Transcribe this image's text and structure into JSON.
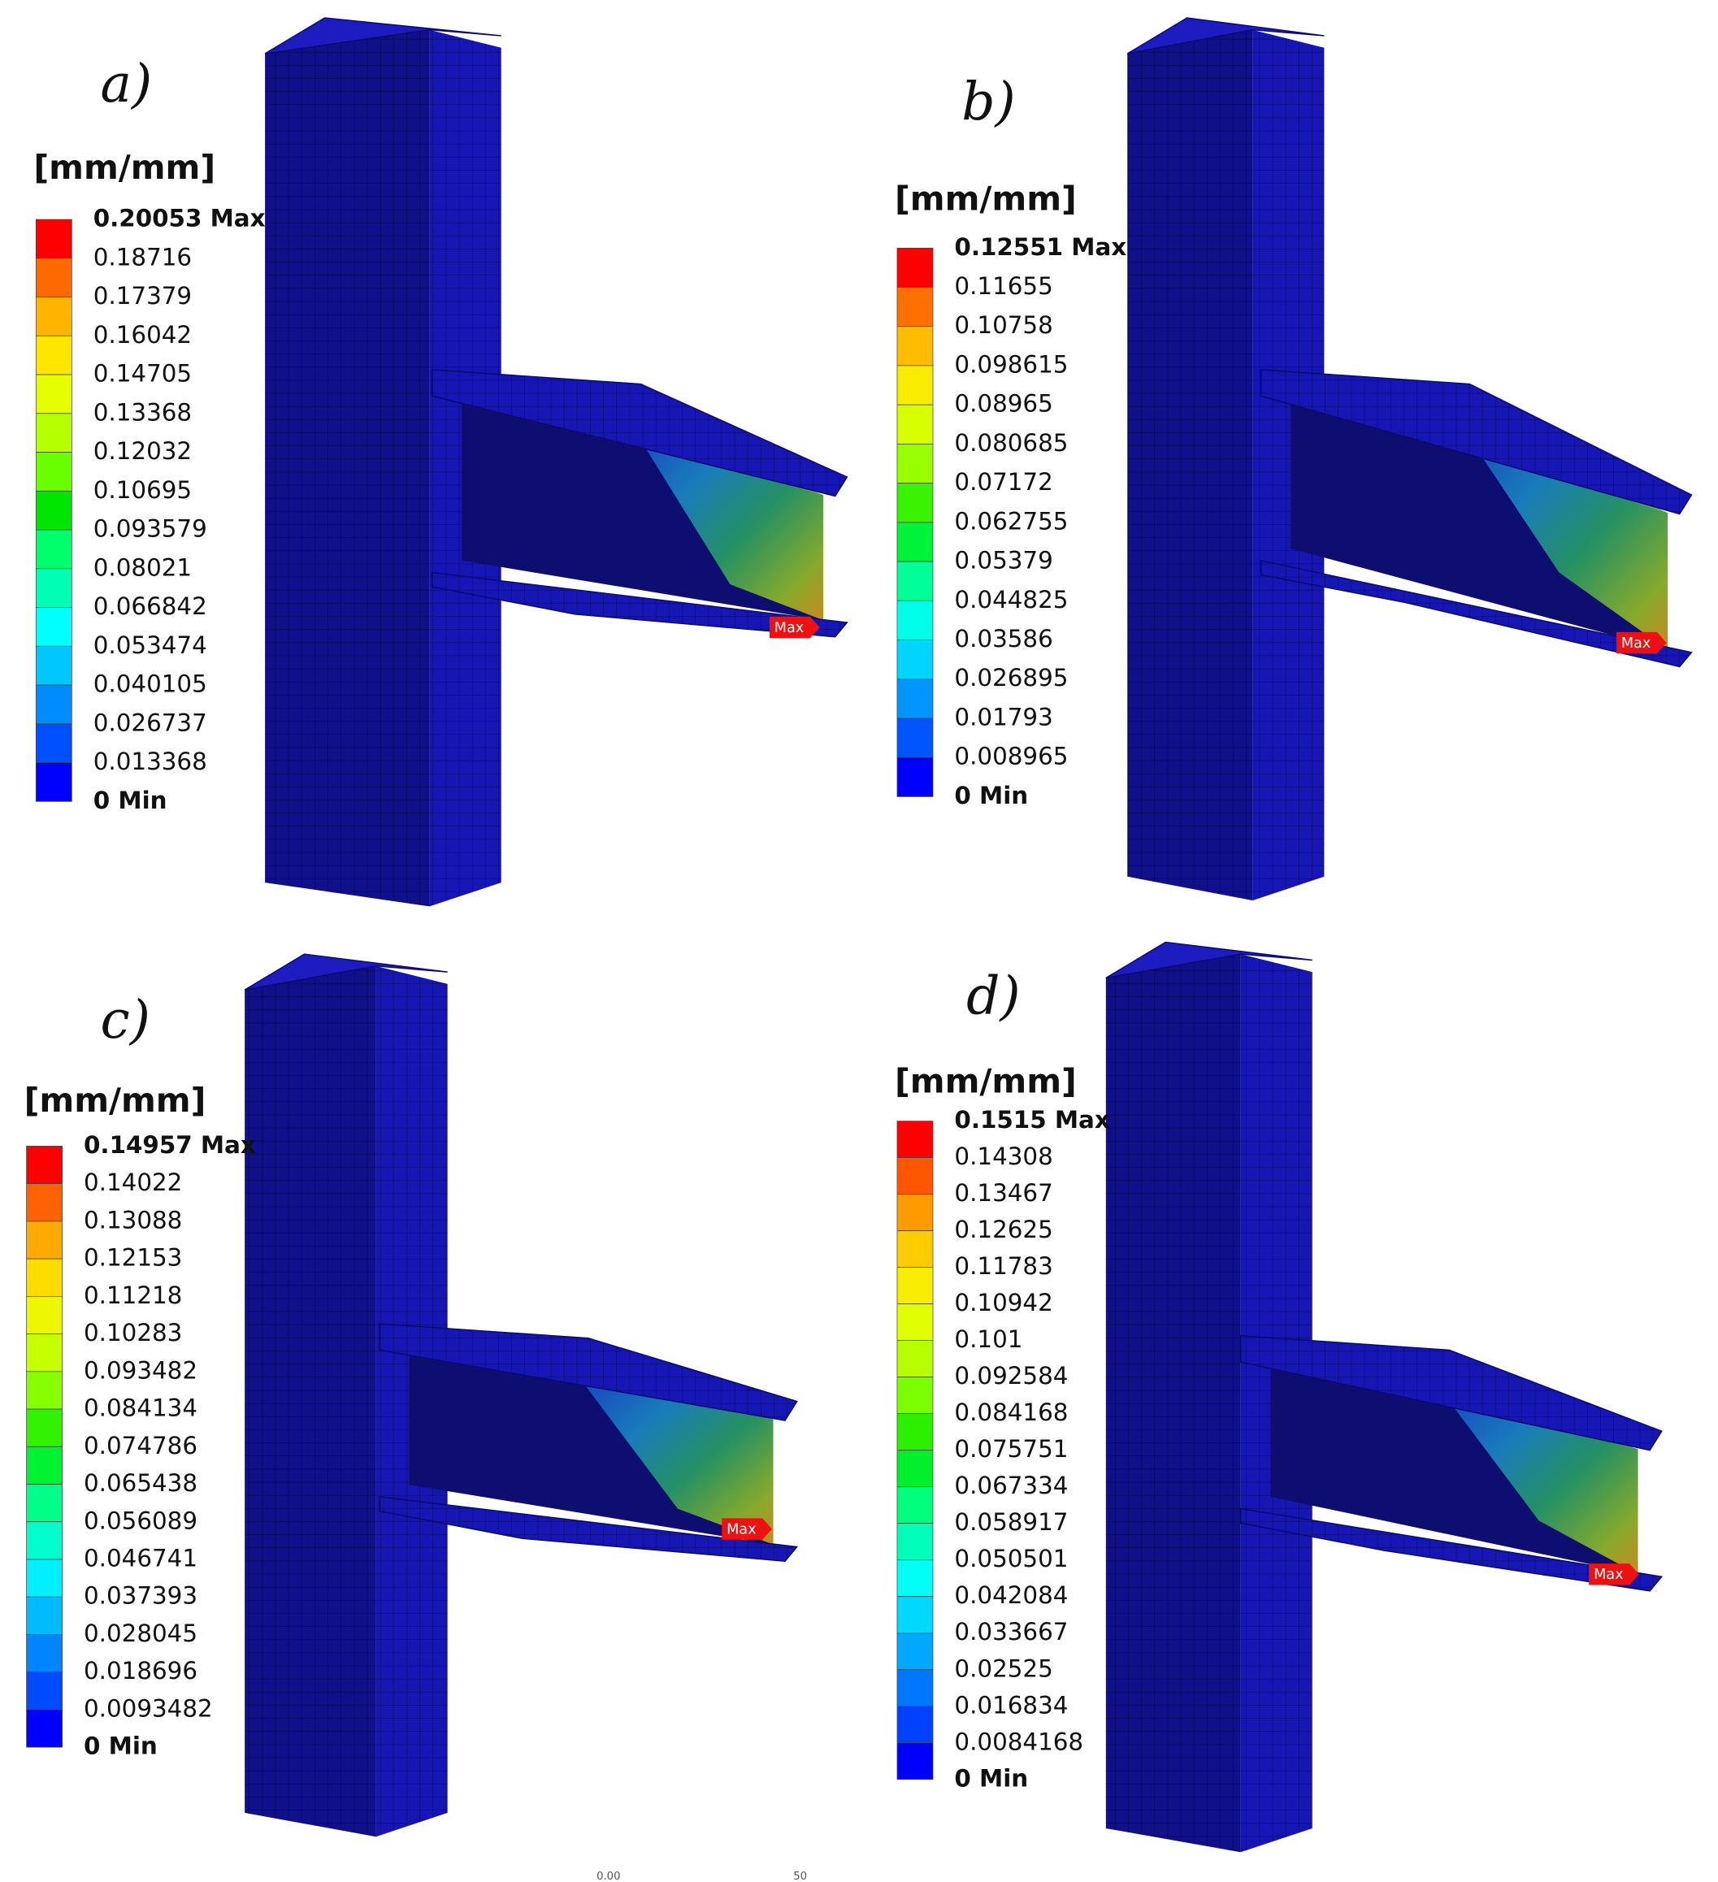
{
  "panels": [
    {
      "label": "a)",
      "unit": "[mm/mm]",
      "max_tag": "Max",
      "levels": [
        "0.20053 Max",
        "0.18716",
        "0.17379",
        "0.16042",
        "0.14705",
        "0.13368",
        "0.12032",
        "0.10695",
        "0.093579",
        "0.08021",
        "0.066842",
        "0.053474",
        "0.040105",
        "0.026737",
        "0.013368",
        "0 Min"
      ]
    },
    {
      "label": "b)",
      "unit": "[mm/mm]",
      "max_tag": "Max",
      "levels": [
        "0.12551 Max",
        "0.11655",
        "0.10758",
        "0.098615",
        "0.08965",
        "0.080685",
        "0.07172",
        "0.062755",
        "0.05379",
        "0.044825",
        "0.03586",
        "0.026895",
        "0.01793",
        "0.008965",
        "0 Min"
      ]
    },
    {
      "label": "c)",
      "unit": "[mm/mm]",
      "max_tag": "Max",
      "levels": [
        "0.14957 Max",
        "0.14022",
        "0.13088",
        "0.12153",
        "0.11218",
        "0.10283",
        "0.093482",
        "0.084134",
        "0.074786",
        "0.065438",
        "0.056089",
        "0.046741",
        "0.037393",
        "0.028045",
        "0.018696",
        "0.0093482",
        "0 Min"
      ]
    },
    {
      "label": "d)",
      "unit": "[mm/mm]",
      "max_tag": "Max",
      "levels": [
        "0.1515 Max",
        "0.14308",
        "0.13467",
        "0.12625",
        "0.11783",
        "0.10942",
        "0.101",
        "0.092584",
        "0.084168",
        "0.075751",
        "0.067334",
        "0.058917",
        "0.050501",
        "0.042084",
        "0.033667",
        "0.02525",
        "0.016834",
        "0.0084168",
        "0 Min"
      ]
    }
  ],
  "scale_bar": {
    "labels": [
      "0.00",
      "50"
    ]
  }
}
